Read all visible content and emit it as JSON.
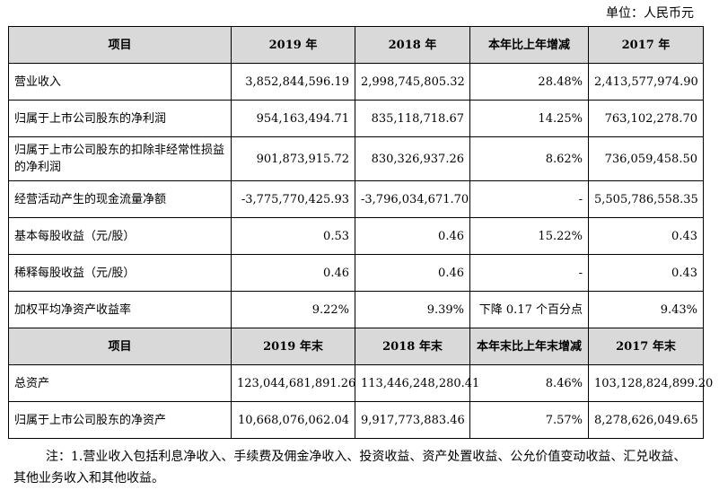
{
  "unit_label": "单位：人民币元",
  "table1": {
    "headers": [
      "项目",
      "2019 年",
      "2018 年",
      "本年比上年增减",
      "2017 年"
    ],
    "rows": [
      [
        "营业收入",
        "3,852,844,596.19",
        "2,998,745,805.32",
        "28.48%",
        "2,413,577,974.90"
      ],
      [
        "归属于上市公司股东的净利润",
        "954,163,494.71",
        "835,118,718.67",
        "14.25%",
        "763,102,278.70"
      ],
      [
        "归属于上市公司股东的扣除非经常性损益的净利润",
        "901,873,915.72",
        "830,326,937.26",
        "8.62%",
        "736,059,458.50"
      ],
      [
        "经营活动产生的现金流量净额",
        "-3,775,770,425.93",
        "-3,796,034,671.70",
        "-",
        "5,505,786,558.35"
      ],
      [
        "基本每股收益（元/股）",
        "0.53",
        "0.46",
        "15.22%",
        "0.43"
      ],
      [
        "稀释每股收益（元/股）",
        "0.46",
        "0.46",
        "-",
        "0.43"
      ],
      [
        "加权平均净资产收益率",
        "9.22%",
        "9.39%",
        "下降 0.17 个百分点",
        "9.43%"
      ]
    ]
  },
  "table2": {
    "headers": [
      "项目",
      "2019 年末",
      "2018 年末",
      "本年末比上年末增减",
      "2017 年末"
    ],
    "rows": [
      [
        "总资产",
        "123,044,681,891.26",
        "113,446,248,280.41",
        "8.46%",
        "103,128,824,899.20"
      ],
      [
        "归属于上市公司股东的净资产",
        "10,668,076,062.04",
        "9,917,773,883.46",
        "7.57%",
        "8,278,626,049.65"
      ]
    ]
  },
  "note": "注：1.营业收入包括利息净收入、手续费及佣金净收入、投资收益、资产处置收益、公允价值变动收益、汇兑收益、其他业务收入和其他收益。"
}
